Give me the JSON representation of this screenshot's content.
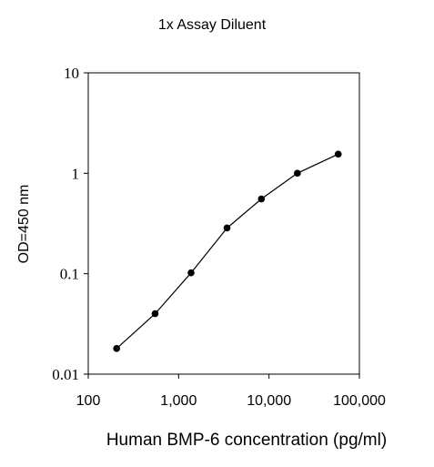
{
  "chart_data": {
    "type": "line",
    "title": "1x Assay Diluent",
    "xlabel": "Human BMP-6 concentration (pg/ml)",
    "ylabel": "OD=450 nm",
    "xscale": "log",
    "yscale": "log",
    "xlim": [
      100,
      100000
    ],
    "ylim": [
      0.01,
      10
    ],
    "xticks": [
      100,
      1000,
      10000,
      100000
    ],
    "xtick_labels": [
      "100",
      "1,000",
      "10,000",
      "100,000"
    ],
    "yticks": [
      0.01,
      0.1,
      1,
      10
    ],
    "ytick_labels": [
      "0.01",
      "0.1",
      "1",
      "10"
    ],
    "grid": false,
    "legend": "none",
    "line_color": "#000000",
    "series": [
      {
        "x": [
          206,
          549,
          1372,
          3430,
          8230,
          20600,
          58300
        ],
        "y": [
          0.018,
          0.04,
          0.102,
          0.285,
          0.555,
          1.0,
          1.55
        ]
      }
    ]
  }
}
